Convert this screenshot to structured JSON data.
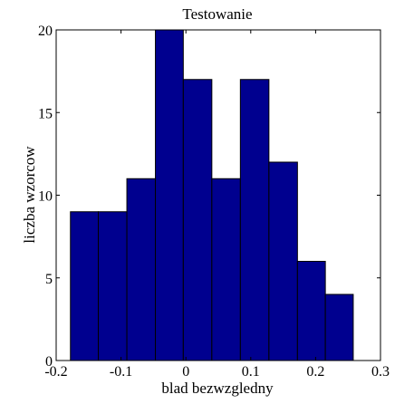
{
  "chart_data": {
    "type": "bar",
    "title": "Testowanie",
    "xlabel": "blad bezwzgledny",
    "ylabel": "liczba wzorcow",
    "xlim": [
      -0.2,
      0.3
    ],
    "ylim": [
      0,
      20
    ],
    "xticks": [
      -0.2,
      -0.1,
      0,
      0.1,
      0.2,
      0.3
    ],
    "yticks": [
      0,
      5,
      10,
      15,
      20
    ],
    "xtick_labels": [
      "-0.2",
      "-0.1",
      "0",
      "0.1",
      "0.2",
      "0.3"
    ],
    "ytick_labels": [
      "0",
      "5",
      "10",
      "15",
      "20"
    ],
    "bin_edges": [
      -0.178,
      -0.135,
      -0.091,
      -0.047,
      -0.004,
      0.04,
      0.084,
      0.128,
      0.172,
      0.215,
      0.258
    ],
    "values": [
      9,
      9,
      11,
      20,
      17,
      11,
      17,
      12,
      6,
      4
    ],
    "grid": false,
    "bar_color": "#00008f",
    "edge_color": "#000000"
  }
}
